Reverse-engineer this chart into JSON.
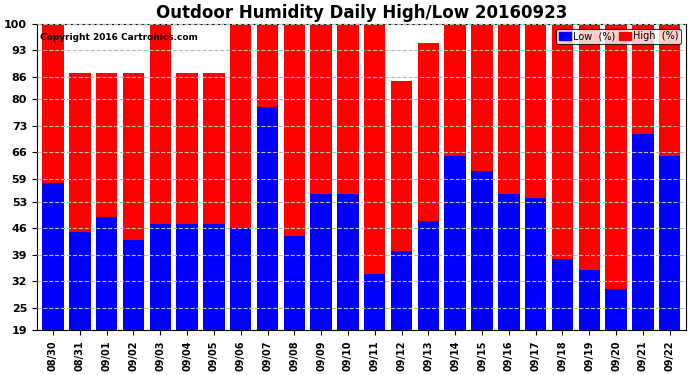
{
  "title": "Outdoor Humidity Daily High/Low 20160923",
  "copyright": "Copyright 2016 Cartronics.com",
  "dates": [
    "08/30",
    "08/31",
    "09/01",
    "09/02",
    "09/03",
    "09/04",
    "09/05",
    "09/06",
    "09/07",
    "09/08",
    "09/09",
    "09/10",
    "09/11",
    "09/12",
    "09/13",
    "09/14",
    "09/15",
    "09/16",
    "09/17",
    "09/18",
    "09/19",
    "09/20",
    "09/21",
    "09/22"
  ],
  "high": [
    100,
    87,
    87,
    87,
    100,
    87,
    87,
    100,
    100,
    100,
    100,
    100,
    100,
    85,
    95,
    100,
    100,
    100,
    100,
    100,
    100,
    100,
    100,
    100
  ],
  "low": [
    58,
    45,
    49,
    43,
    47,
    47,
    47,
    46,
    78,
    44,
    55,
    55,
    34,
    40,
    48,
    65,
    61,
    55,
    54,
    38,
    35,
    30,
    71,
    65
  ],
  "bar_color_high": "#ff0000",
  "bar_color_low": "#0000ff",
  "background_color": "#ffffff",
  "plot_bg_color": "#ffffff",
  "grid_color": "#bbbbbb",
  "yticks": [
    19,
    25,
    32,
    39,
    46,
    53,
    59,
    66,
    73,
    80,
    86,
    93,
    100
  ],
  "ymin": 19,
  "ymax": 100,
  "title_fontsize": 12,
  "legend_low_label": "Low  (%)",
  "legend_high_label": "High  (%)"
}
